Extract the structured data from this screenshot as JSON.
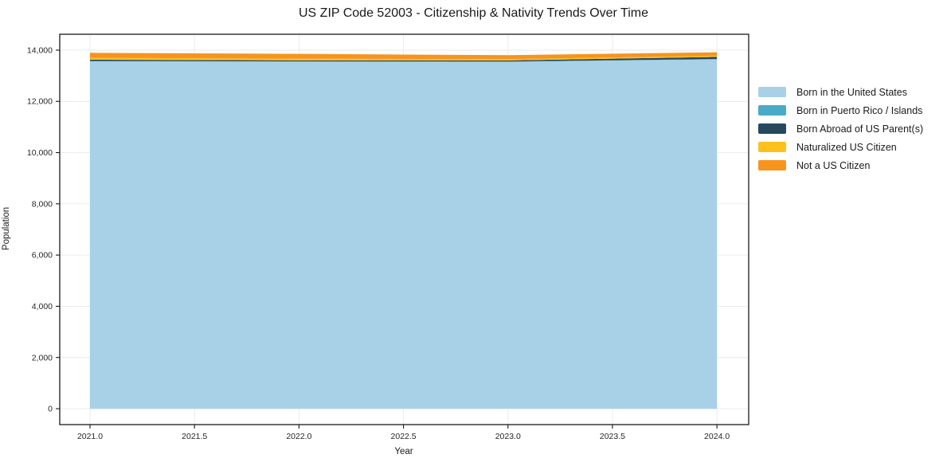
{
  "title": "US ZIP Code 52003 - Citizenship & Nativity Trends Over Time",
  "chart_data": {
    "type": "area",
    "stacked": true,
    "title": "US ZIP Code 52003 - Citizenship & Nativity Trends Over Time",
    "xlabel": "Year",
    "ylabel": "Population",
    "x": [
      2021,
      2022,
      2023,
      2024
    ],
    "series": [
      {
        "name": "Born in the United States",
        "color": "#A8D1E7",
        "values": [
          13560,
          13550,
          13545,
          13640
        ]
      },
      {
        "name": "Born in Puerto Rico / Islands",
        "color": "#49ABC8",
        "values": [
          15,
          12,
          10,
          12
        ]
      },
      {
        "name": "Born Abroad of US Parent(s)",
        "color": "#28485E",
        "values": [
          50,
          42,
          42,
          85
        ]
      },
      {
        "name": "Naturalized US Citizen",
        "color": "#FCC11D",
        "values": [
          70,
          65,
          50,
          40
        ]
      },
      {
        "name": "Not a US Citizen",
        "color": "#F7941E",
        "values": [
          200,
          185,
          155,
          140
        ]
      }
    ],
    "xlim": [
      2020.855,
      2024.152
    ],
    "ylim": [
      -620,
      14620
    ],
    "x_ticks": [
      2021.0,
      2021.5,
      2022.0,
      2022.5,
      2023.0,
      2023.5,
      2024.0
    ],
    "x_tick_labels": [
      "2021.0",
      "2021.5",
      "2022.0",
      "2022.5",
      "2023.0",
      "2023.5",
      "2024.0"
    ],
    "y_ticks": [
      0,
      2000,
      4000,
      6000,
      8000,
      10000,
      12000,
      14000
    ],
    "y_tick_labels": [
      "0",
      "2,000",
      "4,000",
      "6,000",
      "8,000",
      "10,000",
      "12,000",
      "14,000"
    ],
    "grid": true,
    "grid_color": "#e9e9e9",
    "spine_color": "#1a1a1a",
    "tick_label_color": "#262626",
    "legend_position": "right"
  }
}
